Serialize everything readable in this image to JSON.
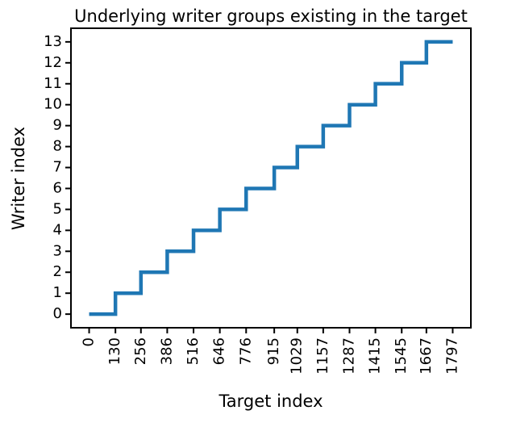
{
  "chart_data": {
    "type": "line",
    "step": "post",
    "title": "Underlying writer groups existing in the target",
    "x_label": "Target index",
    "y_label": "Writer index",
    "series": [
      {
        "color": "#1f77b4",
        "x": [
          0,
          130,
          256,
          386,
          516,
          646,
          776,
          915,
          1029,
          1157,
          1287,
          1415,
          1545,
          1667,
          1797
        ],
        "values": [
          0,
          1,
          2,
          3,
          4,
          5,
          6,
          7,
          8,
          9,
          10,
          11,
          12,
          13,
          13
        ]
      }
    ],
    "xlim": [
      -89.85,
      1886.85
    ],
    "xticks": [
      0,
      130,
      256,
      386,
      516,
      646,
      776,
      915,
      1029,
      1157,
      1287,
      1415,
      1545,
      1667,
      1797
    ],
    "ylim": [
      -0.65,
      13.65
    ],
    "yticks": [
      0,
      1,
      2,
      3,
      4,
      5,
      6,
      7,
      8,
      9,
      10,
      11,
      12,
      13
    ],
    "grid": false
  }
}
